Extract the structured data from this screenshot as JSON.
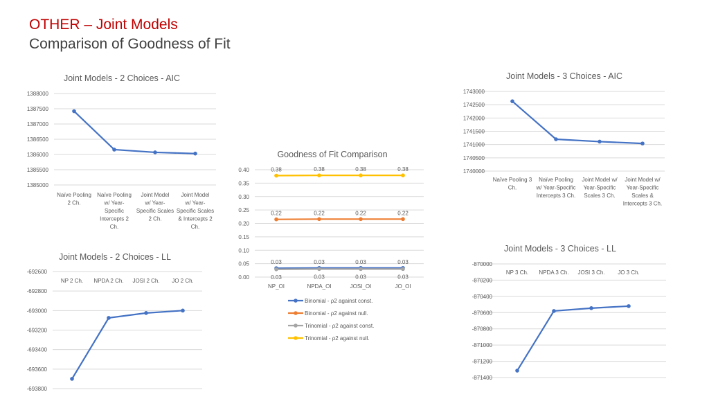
{
  "slide": {
    "title": "OTHER – Joint Models",
    "subtitle": "Comparison of Goodness of Fit"
  },
  "colors": {
    "series_blue": "#4472c4",
    "series_orange": "#ed7d31",
    "series_gray": "#a5a5a5",
    "series_yellow": "#ffc000",
    "grid": "#d9d9d9",
    "title_red": "#c00000"
  },
  "chart_data": [
    {
      "id": "aic2",
      "type": "line",
      "title": "Joint Models - 2 Choices - AIC",
      "categories": [
        [
          "Naïve Pooling",
          "2 Ch."
        ],
        [
          "Naïve Pooling",
          "w/ Year-",
          "Specific",
          "Intercepts 2",
          "Ch."
        ],
        [
          "Joint Model",
          "w/ Year-",
          "Specific Scales",
          "2 Ch."
        ],
        [
          "Joint Model",
          "w/ Year-",
          "Specific Scales",
          "& Intercepts 2",
          "Ch."
        ]
      ],
      "series": [
        {
          "values": [
            1387420,
            1386160,
            1386070,
            1386030
          ]
        }
      ],
      "ylim": [
        1385000,
        1388000
      ],
      "yticks": [
        "1385000",
        "1385500",
        "1386000",
        "1386500",
        "1387000",
        "1387500",
        "1388000"
      ],
      "axis_position": "bottom",
      "grid": true
    },
    {
      "id": "aic3",
      "type": "line",
      "title": "Joint Models - 3 Choices - AIC",
      "categories": [
        [
          "Naïve Pooling 3",
          "Ch."
        ],
        [
          "Naïve Pooling",
          "w/ Year-Specific",
          "Intercepts 3 Ch."
        ],
        [
          "Joint Model w/",
          "Year-Specific",
          "Scales 3 Ch."
        ],
        [
          "Joint Model w/",
          "Year-Specific",
          "Scales &",
          "Intercepts 3 Ch."
        ]
      ],
      "series": [
        {
          "values": [
            1742630,
            1741200,
            1741110,
            1741040
          ]
        }
      ],
      "ylim": [
        1740000,
        1743000
      ],
      "yticks": [
        "1740000",
        "1740500",
        "1741000",
        "1741500",
        "1742000",
        "1742500",
        "1743000"
      ],
      "axis_position": "bottom",
      "grid": true
    },
    {
      "id": "gof",
      "type": "line",
      "title": "Goodness of Fit Comparison",
      "categories": [
        [
          "NP_OI"
        ],
        [
          "NPDA_OI"
        ],
        [
          "JOSI_OI"
        ],
        [
          "JO_OI"
        ]
      ],
      "series": [
        {
          "name": "Binomial - ρ2 against const.",
          "values": [
            0.03,
            0.03,
            0.03,
            0.03
          ],
          "color": "#4472c4",
          "plot": [
            0.033,
            0.034,
            0.034,
            0.034
          ],
          "labels": [
            "0.03",
            "0.03",
            "0.03",
            "0.03"
          ],
          "label_pos": "above"
        },
        {
          "name": "Binomial - ρ2 against null.",
          "values": [
            0.22,
            0.22,
            0.22,
            0.22
          ],
          "color": "#ed7d31",
          "plot": [
            0.215,
            0.216,
            0.216,
            0.216
          ],
          "labels": [
            "0.22",
            "0.22",
            "0.22",
            "0.22"
          ],
          "label_pos": "above"
        },
        {
          "name": "Trinomial - ρ2 against const.",
          "values": [
            0.03,
            0.03,
            0.03,
            0.03
          ],
          "color": "#a5a5a5",
          "plot": [
            0.029,
            0.03,
            0.03,
            0.03
          ],
          "labels": [
            "0.03",
            "0.03",
            "0.03",
            "0.03"
          ],
          "label_pos": "below"
        },
        {
          "name": "Trinomial - ρ2 against null.",
          "values": [
            0.38,
            0.38,
            0.38,
            0.38
          ],
          "color": "#ffc000",
          "plot": [
            0.378,
            0.379,
            0.379,
            0.379
          ],
          "labels": [
            "0.38",
            "0.38",
            "0.38",
            "0.38"
          ],
          "label_pos": "above"
        }
      ],
      "ylim": [
        0,
        0.4
      ],
      "yticks": [
        "0.00",
        "0.05",
        "0.10",
        "0.15",
        "0.20",
        "0.25",
        "0.30",
        "0.35",
        "0.40"
      ],
      "legend": "bottom",
      "grid": true
    },
    {
      "id": "ll2",
      "type": "line",
      "title": "Joint Models - 2 Choices - LL",
      "categories": [
        [
          "NP 2 Ch."
        ],
        [
          "NPDA 2 Ch."
        ],
        [
          "JOSI 2 Ch."
        ],
        [
          "JO 2 Ch."
        ]
      ],
      "series": [
        {
          "values": [
            -693700,
            -693075,
            -693025,
            -693000
          ]
        }
      ],
      "ylim": [
        -693800,
        -692600
      ],
      "yticks": [
        "-693800",
        "-693600",
        "-693400",
        "-693200",
        "-693000",
        "-692800",
        "-692600"
      ],
      "axis_position": "top",
      "grid": true
    },
    {
      "id": "ll3",
      "type": "line",
      "title": "Joint Models - 3 Choices - LL",
      "categories": [
        [
          "NP 3 Ch."
        ],
        [
          "NPDA 3 Ch."
        ],
        [
          "JOSI 3 Ch."
        ],
        [
          "JO 3 Ch."
        ]
      ],
      "series": [
        {
          "values": [
            -871315,
            -870580,
            -870545,
            -870520
          ]
        }
      ],
      "ylim": [
        -871400,
        -870000
      ],
      "yticks": [
        "-871400",
        "-871200",
        "-871000",
        "-870800",
        "-870600",
        "-870400",
        "-870200",
        "-870000"
      ],
      "axis_position": "top",
      "grid": true
    }
  ]
}
